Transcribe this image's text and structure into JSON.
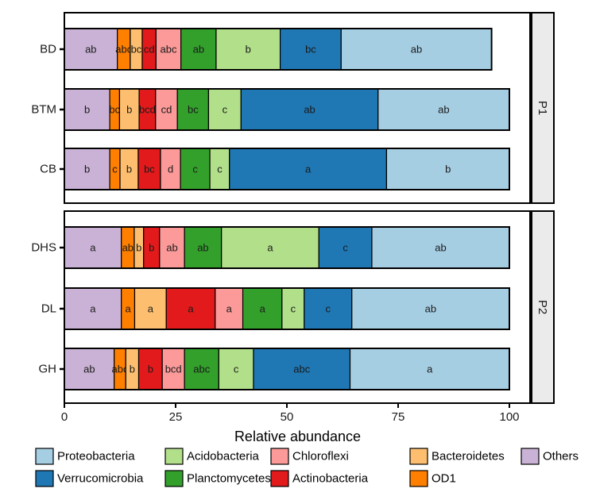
{
  "chart_data": {
    "type": "bar",
    "orientation": "horizontal",
    "stacked": true,
    "xlabel": "Relative abundance",
    "xlim": [
      0,
      105
    ],
    "xticks": [
      0,
      25,
      50,
      75,
      100
    ],
    "grid": false,
    "legend_position": "bottom",
    "taxa_order": [
      "Others",
      "OD1",
      "Bacteroidetes",
      "Actinobacteria",
      "Chloroflexi",
      "Planctomycetes",
      "Acidobacteria",
      "Verrucomicrobia",
      "Proteobacteria"
    ],
    "colors": {
      "Proteobacteria": "#a6cee3",
      "Verrucomicrobia": "#1f78b4",
      "Acidobacteria": "#b2df8a",
      "Planctomycetes": "#33a02c",
      "Chloroflexi": "#fb9a99",
      "Actinobacteria": "#e31a1c",
      "Bacteroidetes": "#fdbf6f",
      "OD1": "#ff7f00",
      "Others": "#cab2d6"
    },
    "legend": [
      "Proteobacteria",
      "Acidobacteria",
      "Chloroflexi",
      "Bacteroidetes",
      "Others",
      "Verrucomicrobia",
      "Planctomycetes",
      "Actinobacteria",
      "OD1"
    ],
    "panels": [
      {
        "label": "P1",
        "rows": [
          {
            "category": "BD",
            "values": [
              11.9,
              2.9,
              2.7,
              3.1,
              5.6,
              7.9,
              14.4,
              13.7,
              33.8
            ],
            "letters": [
              "ab",
              "abc",
              "bc",
              "cd",
              "abc",
              "ab",
              "b",
              "bc",
              "ab"
            ]
          },
          {
            "category": "BTM",
            "values": [
              10.2,
              2.2,
              4.4,
              3.7,
              4.9,
              7.0,
              7.3,
              30.8,
              29.5
            ],
            "letters": [
              "b",
              "bc",
              "b",
              "bcd",
              "cd",
              "bc",
              "c",
              "ab",
              "ab"
            ]
          },
          {
            "category": "CB",
            "values": [
              10.2,
              2.3,
              4.1,
              5.0,
              4.5,
              6.6,
              4.4,
              35.3,
              27.6
            ],
            "letters": [
              "b",
              "c",
              "b",
              "bc",
              "d",
              "c",
              "c",
              "a",
              "b"
            ]
          }
        ]
      },
      {
        "label": "P2",
        "rows": [
          {
            "category": "DHS",
            "values": [
              12.8,
              2.9,
              2.1,
              3.6,
              5.6,
              8.3,
              21.9,
              11.9,
              30.9
            ],
            "letters": [
              "a",
              "ab",
              "b",
              "b",
              "ab",
              "ab",
              "a",
              "c",
              "ab"
            ]
          },
          {
            "category": "DL",
            "values": [
              12.8,
              3.0,
              7.1,
              11.0,
              6.2,
              8.8,
              5.0,
              10.7,
              35.4
            ],
            "letters": [
              "a",
              "a",
              "a",
              "a",
              "a",
              "a",
              "c",
              "c",
              "ab"
            ]
          },
          {
            "category": "GH",
            "values": [
              11.2,
              2.6,
              2.9,
              5.3,
              5.0,
              7.7,
              7.8,
              21.7,
              35.8
            ],
            "letters": [
              "ab",
              "abc",
              "b",
              "b",
              "bcd",
              "abc",
              "c",
              "abc",
              "a"
            ]
          }
        ]
      }
    ]
  }
}
